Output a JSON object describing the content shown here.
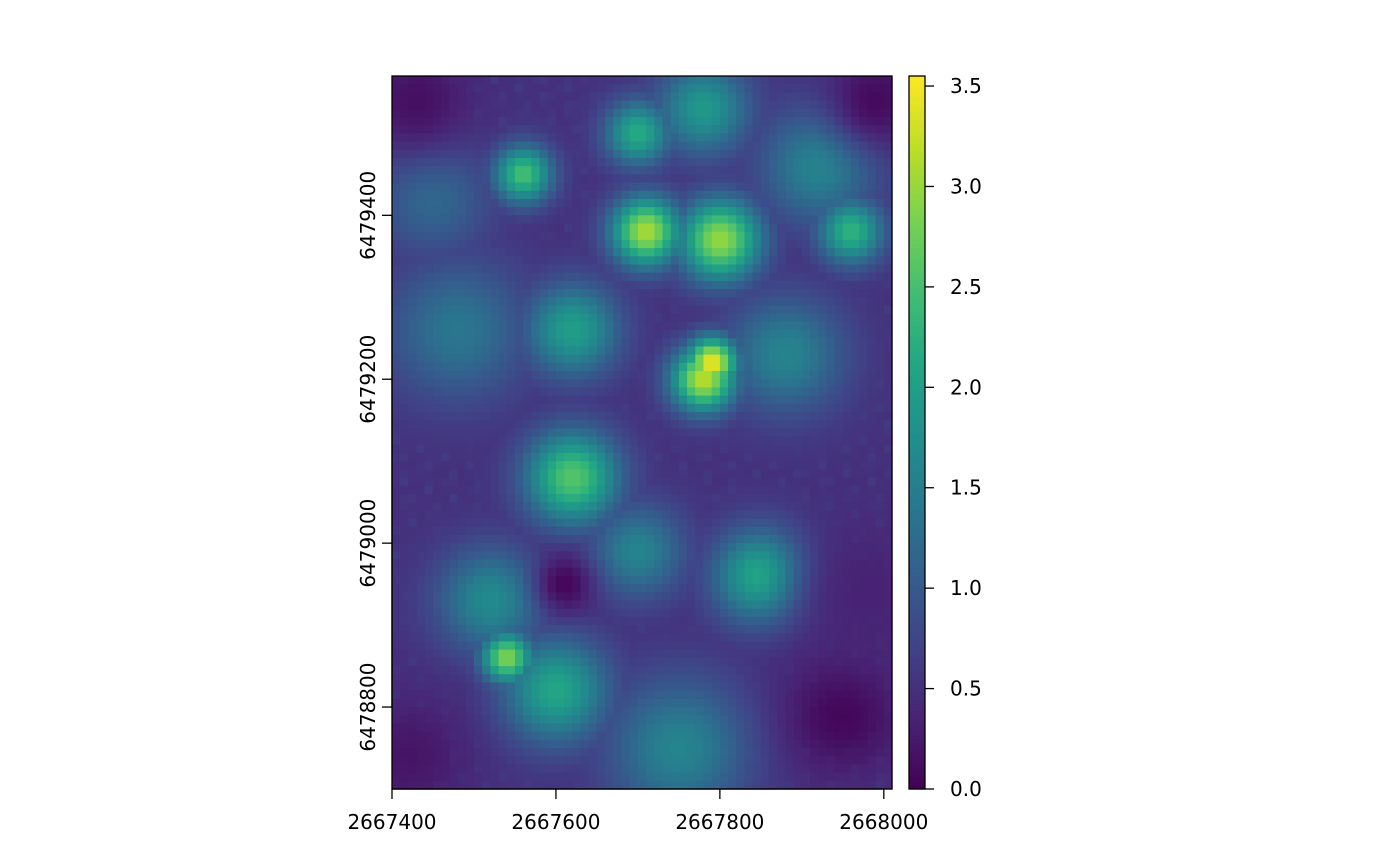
{
  "chart_data": {
    "type": "heatmap",
    "title": "",
    "xlabel": "",
    "ylabel": "",
    "xlim": [
      2667400,
      2668010
    ],
    "ylim": [
      6478700,
      6479570
    ],
    "x_ticks": [
      2667400,
      2667600,
      2667800,
      2668000
    ],
    "x_tick_labels": [
      "2667400",
      "2667600",
      "2667800",
      "2668000"
    ],
    "y_ticks": [
      6478800,
      6479000,
      6479200,
      6479400
    ],
    "y_tick_labels": [
      "6478800",
      "6479000",
      "6479200",
      "6479400"
    ],
    "colorbar": {
      "palette": "viridis",
      "range": [
        0,
        3.55
      ],
      "ticks": [
        0,
        0.5,
        1,
        1.5,
        2,
        2.5,
        3,
        3.5
      ],
      "tick_labels": [
        "0.0",
        "0.5",
        "1.0",
        "1.5",
        "2.0",
        "2.5",
        "3.0",
        "3.5"
      ]
    },
    "raster": {
      "ncols": 61,
      "nrows": 87,
      "cell_size": 10,
      "base_value": 0.5,
      "features": [
        {
          "kind": "peak",
          "x": 2667790,
          "y": 6479220,
          "value": 3.5,
          "radius": 22
        },
        {
          "kind": "peak",
          "x": 2667780,
          "y": 6479200,
          "value": 3.2,
          "radius": 28
        },
        {
          "kind": "peak",
          "x": 2667710,
          "y": 6479380,
          "value": 3.1,
          "radius": 30
        },
        {
          "kind": "peak",
          "x": 2667800,
          "y": 6479370,
          "value": 3.0,
          "radius": 35
        },
        {
          "kind": "peak",
          "x": 2667540,
          "y": 6478860,
          "value": 2.9,
          "radius": 22
        },
        {
          "kind": "peak",
          "x": 2667560,
          "y": 6479450,
          "value": 2.5,
          "radius": 25
        },
        {
          "kind": "peak",
          "x": 2667620,
          "y": 6479080,
          "value": 2.6,
          "radius": 40
        },
        {
          "kind": "peak",
          "x": 2667850,
          "y": 6478960,
          "value": 2.2,
          "radius": 40
        },
        {
          "kind": "peak",
          "x": 2667780,
          "y": 6479530,
          "value": 1.9,
          "radius": 40
        },
        {
          "kind": "peak",
          "x": 2667700,
          "y": 6479500,
          "value": 2.2,
          "radius": 28
        },
        {
          "kind": "peak",
          "x": 2667960,
          "y": 6479380,
          "value": 2.3,
          "radius": 28
        },
        {
          "kind": "peak",
          "x": 2667620,
          "y": 6479260,
          "value": 2.0,
          "radius": 40
        },
        {
          "kind": "peak",
          "x": 2667520,
          "y": 6478930,
          "value": 1.7,
          "radius": 45
        },
        {
          "kind": "peak",
          "x": 2667600,
          "y": 6478820,
          "value": 2.1,
          "radius": 45
        },
        {
          "kind": "peak",
          "x": 2667700,
          "y": 6478990,
          "value": 1.6,
          "radius": 40
        },
        {
          "kind": "peak",
          "x": 2667750,
          "y": 6478750,
          "value": 1.6,
          "radius": 60
        },
        {
          "kind": "peak",
          "x": 2667480,
          "y": 6479260,
          "value": 1.4,
          "radius": 60
        },
        {
          "kind": "peak",
          "x": 2667880,
          "y": 6479230,
          "value": 1.6,
          "radius": 50
        },
        {
          "kind": "peak",
          "x": 2667920,
          "y": 6479460,
          "value": 1.6,
          "radius": 50
        },
        {
          "kind": "peak",
          "x": 2667450,
          "y": 6479420,
          "value": 1.2,
          "radius": 50
        },
        {
          "kind": "low",
          "x": 2667610,
          "y": 6478950,
          "value": 0.05,
          "radius": 24
        },
        {
          "kind": "low",
          "x": 2667950,
          "y": 6478790,
          "value": 0.05,
          "radius": 50
        },
        {
          "kind": "low",
          "x": 2667420,
          "y": 6478740,
          "value": 0.2,
          "radius": 50
        },
        {
          "kind": "low",
          "x": 2667430,
          "y": 6479540,
          "value": 0.15,
          "radius": 45
        },
        {
          "kind": "low",
          "x": 2667990,
          "y": 6479540,
          "value": 0.1,
          "radius": 40
        },
        {
          "kind": "low",
          "x": 2667980,
          "y": 6478940,
          "value": 0.35,
          "radius": 60
        }
      ]
    }
  }
}
